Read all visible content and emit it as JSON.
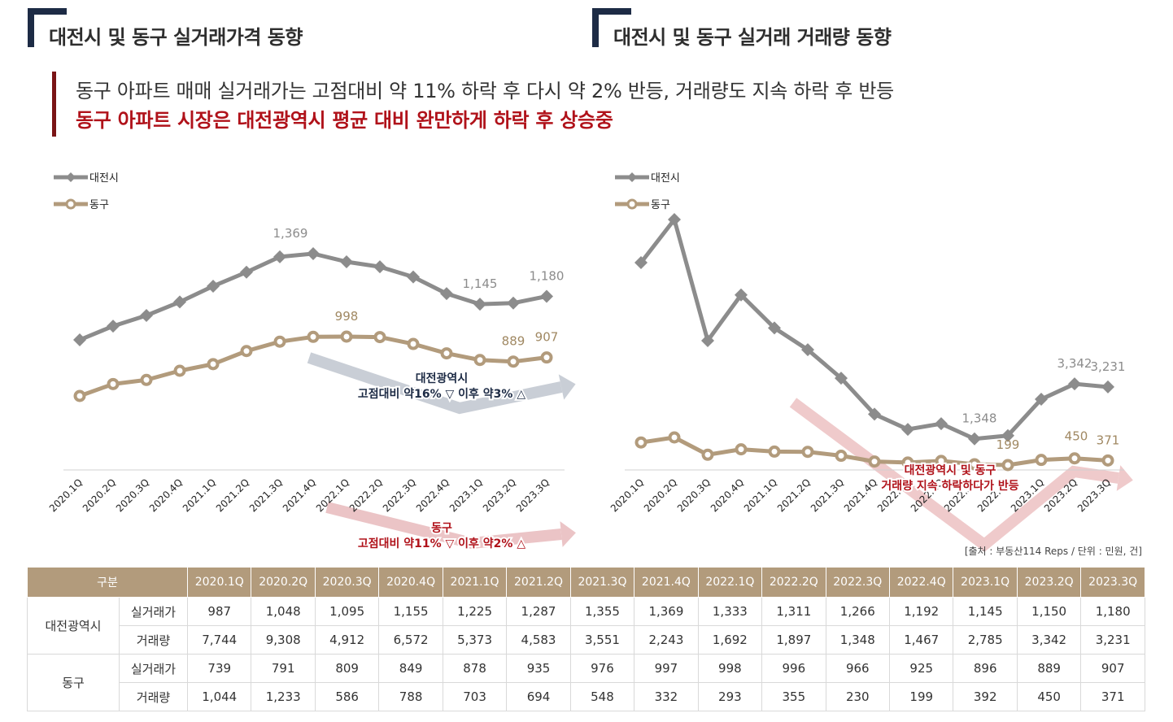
{
  "titles": {
    "price": "대전시 및 동구 실거래가격 동향",
    "volume": "대전시 및 동구 실거래 거래량 동향"
  },
  "headline": {
    "line1": "동구 아파트 매매 실거래가는 고점대비 약 11% 하락 후 다시 약 2% 반등, 거래량도 지속 하락 후 반등",
    "line2": "동구 아파트 시장은 대전광역시 평균 대비 완만하게 하락 후 상승중"
  },
  "colors": {
    "daejeon": "#8c8c8c",
    "donggu": "#b29b7c",
    "navy": "#1d2b45",
    "red": "#b0121a",
    "header": "#b29b7c"
  },
  "chart_data": [
    {
      "type": "line",
      "title": "대전시 및 동구 실거래가격 동향",
      "categories": [
        "2020.1Q",
        "2020.2Q",
        "2020.3Q",
        "2020.4Q",
        "2021.1Q",
        "2021.2Q",
        "2021.3Q",
        "2021.4Q",
        "2022.1Q",
        "2022.2Q",
        "2022.3Q",
        "2022.4Q",
        "2023.1Q",
        "2023.2Q",
        "2023.3Q"
      ],
      "series": [
        {
          "name": "대전시",
          "values": [
            987,
            1048,
            1095,
            1155,
            1225,
            1287,
            1355,
            1369,
            1333,
            1311,
            1266,
            1192,
            1145,
            1150,
            1180
          ],
          "color": "#8c8c8c"
        },
        {
          "name": "동구",
          "values": [
            739,
            791,
            809,
            849,
            878,
            935,
            976,
            997,
            998,
            996,
            966,
            925,
            896,
            889,
            907
          ],
          "color": "#b29b7c"
        }
      ],
      "data_labels": [
        {
          "series": 0,
          "index": 7,
          "text": "1,369"
        },
        {
          "series": 0,
          "index": 12,
          "text": "1,145"
        },
        {
          "series": 0,
          "index": 14,
          "text": "1,180"
        },
        {
          "series": 1,
          "index": 8,
          "text": "998"
        },
        {
          "series": 1,
          "index": 13,
          "text": "889"
        },
        {
          "series": 1,
          "index": 14,
          "text": "907"
        }
      ],
      "annotations": [
        {
          "lines": [
            "대전광역시",
            "고점대비 약16% ▽ 이후 약3% △"
          ],
          "color": "#1d2b45"
        },
        {
          "lines": [
            "동구",
            "고점대비 약11% ▽ 이후 약2% △"
          ],
          "color": "#b0121a"
        }
      ],
      "ylim": [
        600,
        1500
      ],
      "legend": "top-left",
      "grid": false
    },
    {
      "type": "line",
      "title": "대전시 및 동구 실거래 거래량 동향",
      "categories": [
        "2020.1Q",
        "2020.2Q",
        "2020.3Q",
        "2020.4Q",
        "2021.1Q",
        "2021.2Q",
        "2021.3Q",
        "2021.4Q",
        "2022.1Q",
        "2022.2Q",
        "2022.3Q",
        "2022.4Q",
        "2023.1Q",
        "2023.2Q",
        "2023.3Q"
      ],
      "series": [
        {
          "name": "대전시",
          "values": [
            7744,
            9308,
            4912,
            6572,
            5373,
            4583,
            3551,
            2243,
            1692,
            1897,
            1348,
            1467,
            2785,
            3342,
            3231
          ],
          "color": "#8c8c8c"
        },
        {
          "name": "동구",
          "values": [
            1044,
            1233,
            586,
            788,
            703,
            694,
            548,
            332,
            293,
            355,
            230,
            199,
            392,
            450,
            371
          ],
          "color": "#b29b7c"
        }
      ],
      "data_labels": [
        {
          "series": 0,
          "index": 10,
          "text": "1,348"
        },
        {
          "series": 0,
          "index": 13,
          "text": "3,342"
        },
        {
          "series": 0,
          "index": 14,
          "text": "3,231"
        },
        {
          "series": 1,
          "index": 11,
          "text": "199"
        },
        {
          "series": 1,
          "index": 13,
          "text": "450"
        },
        {
          "series": 1,
          "index": 14,
          "text": "371"
        }
      ],
      "annotations": [
        {
          "lines": [
            "대전광역시 및 동구",
            "거래량 지속 하락하다가 반등"
          ],
          "color": "#b0121a"
        }
      ],
      "ylim": [
        -100,
        11200
      ],
      "legend": "top-left",
      "grid": false
    }
  ],
  "source": "[출처 : 부동산114 Reps  / 단위 : 민원, 건]",
  "table": {
    "header_first": "구분",
    "columns": [
      "2020.1Q",
      "2020.2Q",
      "2020.3Q",
      "2020.4Q",
      "2021.1Q",
      "2021.2Q",
      "2021.3Q",
      "2021.4Q",
      "2022.1Q",
      "2022.2Q",
      "2022.3Q",
      "2022.4Q",
      "2023.1Q",
      "2023.2Q",
      "2023.3Q"
    ],
    "groups": [
      {
        "name": "대전광역시",
        "rows": [
          {
            "label": "실거래가",
            "values": [
              "987",
              "1,048",
              "1,095",
              "1,155",
              "1,225",
              "1,287",
              "1,355",
              "1,369",
              "1,333",
              "1,311",
              "1,266",
              "1,192",
              "1,145",
              "1,150",
              "1,180"
            ]
          },
          {
            "label": "거래량",
            "values": [
              "7,744",
              "9,308",
              "4,912",
              "6,572",
              "5,373",
              "4,583",
              "3,551",
              "2,243",
              "1,692",
              "1,897",
              "1,348",
              "1,467",
              "2,785",
              "3,342",
              "3,231"
            ]
          }
        ]
      },
      {
        "name": "동구",
        "rows": [
          {
            "label": "실거래가",
            "values": [
              "739",
              "791",
              "809",
              "849",
              "878",
              "935",
              "976",
              "997",
              "998",
              "996",
              "966",
              "925",
              "896",
              "889",
              "907"
            ]
          },
          {
            "label": "거래량",
            "values": [
              "1,044",
              "1,233",
              "586",
              "788",
              "703",
              "694",
              "548",
              "332",
              "293",
              "355",
              "230",
              "199",
              "392",
              "450",
              "371"
            ]
          }
        ]
      }
    ]
  }
}
